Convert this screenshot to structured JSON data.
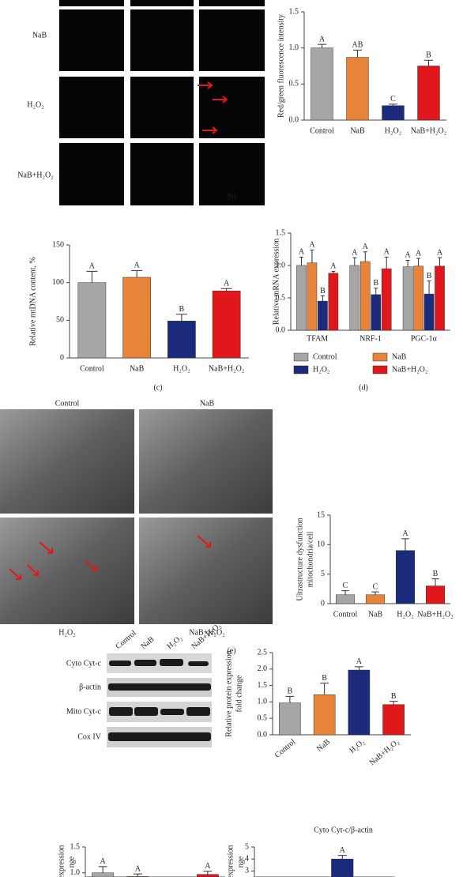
{
  "images_b": {
    "row_labels": [
      "NaB",
      "H₂O₂",
      "NaB+H₂O₂"
    ]
  },
  "images_e": {
    "labels": [
      "Control",
      "NaB",
      "H₂O₂",
      "NaB+H₂O₂"
    ]
  },
  "blot": {
    "column_labels": [
      "Control",
      "NaB",
      "H₂O₂",
      "NaB+H₂O₂"
    ],
    "row_labels": [
      "Cyto Cyt-c",
      "β-actin",
      "Mito Cyt-c",
      "Cox IV"
    ]
  },
  "panel_labels": [
    "(b)",
    "(c)",
    "(d)",
    "(e)"
  ],
  "chart_data": [
    {
      "type": "bar",
      "ylabel": "Red/green fluorescence intensity",
      "categories": [
        "Control",
        "NaB",
        "H₂O₂",
        "NaB+H₂O₂"
      ],
      "values": [
        1.0,
        0.87,
        0.2,
        0.75
      ],
      "errors": [
        0.05,
        0.1,
        0.02,
        0.08
      ],
      "annotations": [
        "A",
        "AB",
        "C",
        "B"
      ],
      "colors": [
        "#a6a6a6",
        "#e8843a",
        "#1b2a7a",
        "#e0181c"
      ],
      "ylim": [
        0,
        1.5
      ],
      "yticks": [
        {
          "value": 0,
          "label": "0.0"
        },
        0.5,
        {
          "value": 1,
          "label": "1.0"
        },
        1.5
      ]
    },
    {
      "type": "bar",
      "ylabel": "Relative mtDNA content, %",
      "categories": [
        "Control",
        "NaB",
        "H₂O₂",
        "NaB+H₂O₂"
      ],
      "values": [
        100,
        107,
        49,
        89
      ],
      "errors": [
        15,
        9,
        9,
        3
      ],
      "annotations": [
        "A",
        "A",
        "B",
        "A"
      ],
      "colors": [
        "#a6a6a6",
        "#e8843a",
        "#1b2a7a",
        "#e0181c"
      ],
      "ylim": [
        0,
        150
      ],
      "yticks": [
        0,
        50,
        100,
        150
      ]
    },
    {
      "type": "bar",
      "ylabel": "Relative mRNA expression",
      "categories": [
        "TFAM",
        "NRF-1",
        "PGC-1α"
      ],
      "series": [
        {
          "name": "Control",
          "color": "#a6a6a6",
          "values": [
            1.0,
            1.0,
            0.98
          ],
          "errors": [
            0.13,
            0.12,
            0.1
          ],
          "annotations": [
            "A",
            "A",
            "A"
          ]
        },
        {
          "name": "NaB",
          "color": "#e8843a",
          "values": [
            1.04,
            1.06,
            0.99
          ],
          "errors": [
            0.2,
            0.15,
            0.12
          ],
          "annotations": [
            "A",
            "A",
            "A"
          ]
        },
        {
          "name": "H₂O₂",
          "color": "#1b2a7a",
          "values": [
            0.45,
            0.55,
            0.56
          ],
          "errors": [
            0.08,
            0.1,
            0.2
          ],
          "annotations": [
            "B",
            "B",
            "B"
          ]
        },
        {
          "name": "NaB+H₂O₂",
          "color": "#e0181c",
          "values": [
            0.88,
            0.95,
            0.99
          ],
          "errors": [
            0.03,
            0.18,
            0.13
          ],
          "annotations": [
            "A",
            "A",
            "A"
          ]
        }
      ],
      "ylim": [
        0,
        1.5
      ],
      "yticks": [
        {
          "value": 0,
          "label": "0.0"
        },
        0.5,
        {
          "value": 1,
          "label": "1.0"
        },
        1.5
      ]
    },
    {
      "type": "bar",
      "ylabel": [
        "Ultrastructure dysfunction",
        "mitochondria/cell"
      ],
      "categories": [
        "Control",
        "NaB",
        "H₂O₂",
        "NaB+H₂O₂"
      ],
      "values": [
        1.5,
        1.5,
        9,
        3
      ],
      "errors": [
        0.7,
        0.5,
        2,
        1.2
      ],
      "annotations": [
        "C",
        "C",
        "A",
        "B"
      ],
      "colors": [
        "#a6a6a6",
        "#e8843a",
        "#1b2a7a",
        "#e0181c"
      ],
      "ylim": [
        0,
        15
      ],
      "yticks": [
        0,
        5,
        10,
        15
      ]
    },
    {
      "type": "bar",
      "ylabel": [
        "Relative protein expression",
        "fold change"
      ],
      "categories": [
        "Control",
        "NaB",
        "H₂O₂",
        "NaB+H₂O₂"
      ],
      "values": [
        0.97,
        1.22,
        1.97,
        0.92
      ],
      "errors": [
        0.2,
        0.35,
        0.1,
        0.1
      ],
      "annotations": [
        "B",
        "B",
        "A",
        "B"
      ],
      "colors": [
        "#a6a6a6",
        "#e8843a",
        "#1b2a7a",
        "#e0181c"
      ],
      "caption": "Cyto Cyt-c/β-actin",
      "ylim": [
        0,
        2.5
      ],
      "yticks": [
        {
          "value": 0,
          "label": "0.0"
        },
        0.5,
        {
          "value": 1,
          "label": "1.0"
        },
        1.5,
        {
          "value": 2,
          "label": "2.0"
        },
        2.5
      ]
    },
    {
      "type": "bar",
      "ylabel": [
        "expression",
        "nge"
      ],
      "values": [
        1.0,
        0.93,
        null,
        0.97
      ],
      "errors": [
        0.12,
        0.05,
        null,
        0.06
      ],
      "annotations": [
        "A",
        "A",
        null,
        "A"
      ],
      "colors": [
        "#a6a6a6",
        "#e8843a",
        "#1b2a7a",
        "#e0181c"
      ],
      "ylim": [
        0.92,
        1.5
      ],
      "yticks": [
        {
          "value": 1,
          "label": "1.0"
        },
        1.5
      ]
    },
    {
      "type": "bar",
      "ylabel": [
        "expression",
        "nge"
      ],
      "values": [
        null,
        null,
        4.0,
        null
      ],
      "errors": [
        null,
        null,
        0.3,
        null
      ],
      "annotations": [
        null,
        null,
        "A",
        null
      ],
      "colors": [
        "#a6a6a6",
        "#e8843a",
        "#1b2a7a",
        "#e0181c"
      ],
      "ylim": [
        2.5,
        5
      ],
      "yticks": [
        3,
        4,
        5
      ]
    }
  ]
}
